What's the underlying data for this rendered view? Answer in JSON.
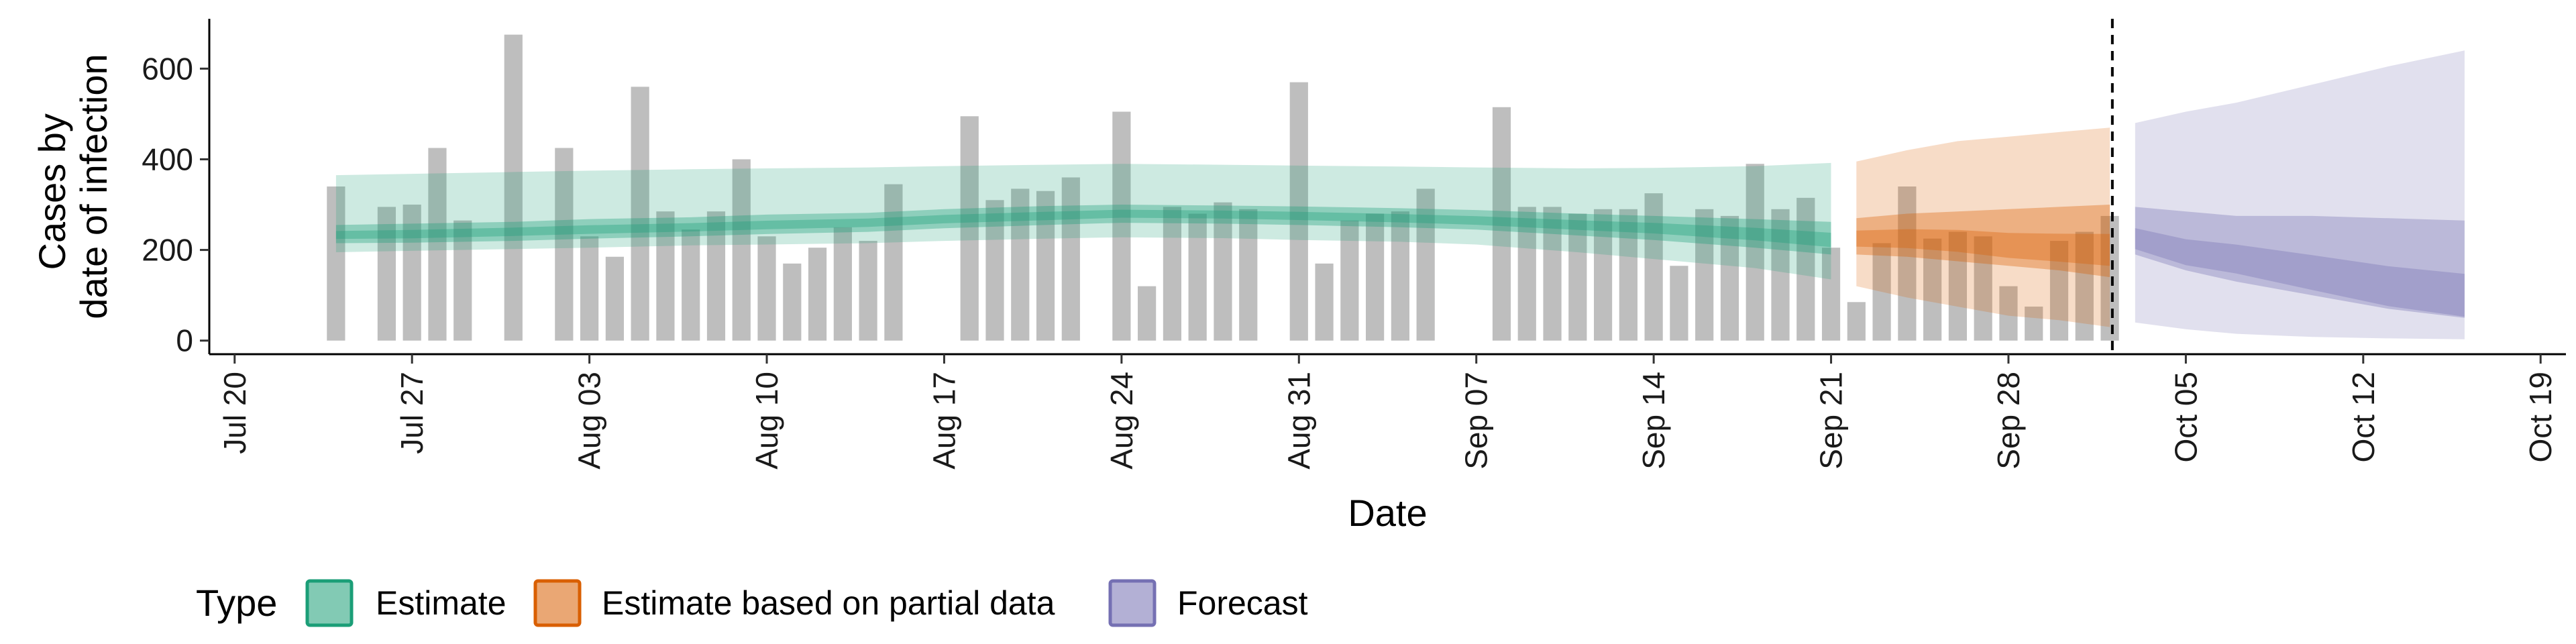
{
  "chart_data": {
    "type": "bar",
    "xlabel": "Date",
    "ylabel_lines": [
      "Cases by",
      "date of infection"
    ],
    "x_ticks": [
      "Jul 20",
      "Jul 27",
      "Aug 03",
      "Aug 10",
      "Aug 17",
      "Aug 24",
      "Aug 31",
      "Sep 07",
      "Sep 14",
      "Sep 21",
      "Sep 28",
      "Oct 05",
      "Oct 12",
      "Oct 19"
    ],
    "y_ticks": [
      0,
      200,
      400,
      600
    ],
    "ylim": [
      -30,
      710
    ],
    "xlim": [
      "2020-07-19",
      "2020-10-20"
    ],
    "grid": false,
    "forecast_date": "2020-10-02",
    "reported_cases": {
      "dates": [
        "2020-07-24",
        "2020-07-25",
        "2020-07-26",
        "2020-07-27",
        "2020-07-28",
        "2020-07-29",
        "2020-07-30",
        "2020-07-31",
        "2020-08-01",
        "2020-08-02",
        "2020-08-03",
        "2020-08-04",
        "2020-08-05",
        "2020-08-06",
        "2020-08-07",
        "2020-08-08",
        "2020-08-09",
        "2020-08-10",
        "2020-08-11",
        "2020-08-12",
        "2020-08-13",
        "2020-08-14",
        "2020-08-15",
        "2020-08-16",
        "2020-08-17",
        "2020-08-18",
        "2020-08-19",
        "2020-08-20",
        "2020-08-21",
        "2020-08-22",
        "2020-08-23",
        "2020-08-24",
        "2020-08-25",
        "2020-08-26",
        "2020-08-27",
        "2020-08-28",
        "2020-08-29",
        "2020-08-30",
        "2020-08-31",
        "2020-09-01",
        "2020-09-02",
        "2020-09-03",
        "2020-09-04",
        "2020-09-05",
        "2020-09-06",
        "2020-09-07",
        "2020-09-08",
        "2020-09-09",
        "2020-09-10",
        "2020-09-11",
        "2020-09-12",
        "2020-09-13",
        "2020-09-14",
        "2020-09-15",
        "2020-09-16",
        "2020-09-17",
        "2020-09-18",
        "2020-09-19",
        "2020-09-20",
        "2020-09-21",
        "2020-09-22",
        "2020-09-23",
        "2020-09-24",
        "2020-09-25",
        "2020-09-26",
        "2020-09-27",
        "2020-09-28",
        "2020-09-29",
        "2020-09-30",
        "2020-10-01",
        "2020-10-02"
      ],
      "values": [
        340,
        0,
        295,
        300,
        425,
        265,
        0,
        675,
        0,
        425,
        230,
        185,
        560,
        285,
        245,
        285,
        400,
        230,
        170,
        205,
        250,
        220,
        345,
        0,
        0,
        495,
        310,
        335,
        330,
        360,
        0,
        505,
        120,
        295,
        280,
        305,
        290,
        0,
        570,
        170,
        265,
        280,
        285,
        335,
        0,
        0,
        515,
        295,
        295,
        280,
        290,
        290,
        325,
        165,
        290,
        275,
        390,
        290,
        315,
        205,
        85,
        215,
        340,
        225,
        240,
        230,
        120,
        75,
        220,
        240,
        275
      ],
      "color": "#bebebe"
    },
    "series": [
      {
        "name": "Estimate",
        "color": "#1b9e77",
        "x": [
          "2020-07-24",
          "2020-07-27",
          "2020-07-31",
          "2020-08-03",
          "2020-08-07",
          "2020-08-10",
          "2020-08-14",
          "2020-08-17",
          "2020-08-21",
          "2020-08-24",
          "2020-08-28",
          "2020-08-31",
          "2020-09-04",
          "2020-09-07",
          "2020-09-11",
          "2020-09-14",
          "2020-09-18",
          "2020-09-21"
        ],
        "median": [
          233,
          235,
          240,
          245,
          250,
          255,
          260,
          268,
          275,
          280,
          278,
          275,
          270,
          265,
          255,
          248,
          235,
          222
        ],
        "inner_low": [
          215,
          216,
          220,
          225,
          230,
          235,
          240,
          248,
          255,
          260,
          258,
          255,
          250,
          245,
          232,
          222,
          205,
          190
        ],
        "inner_high": [
          255,
          258,
          262,
          268,
          272,
          278,
          282,
          290,
          297,
          300,
          298,
          296,
          292,
          288,
          280,
          275,
          268,
          262
        ],
        "outer_low": [
          195,
          198,
          202,
          205,
          210,
          212,
          215,
          220,
          225,
          228,
          226,
          222,
          218,
          212,
          195,
          180,
          160,
          135
        ],
        "outer_high": [
          365,
          368,
          372,
          375,
          378,
          380,
          382,
          385,
          388,
          390,
          388,
          386,
          384,
          382,
          380,
          381,
          385,
          392
        ]
      },
      {
        "name": "Estimate based on partial data",
        "color": "#d95f02",
        "x": [
          "2020-09-22",
          "2020-09-24",
          "2020-09-26",
          "2020-09-28",
          "2020-09-30",
          "2020-10-02"
        ],
        "median": [
          225,
          225,
          220,
          210,
          205,
          200
        ],
        "inner_low": [
          190,
          185,
          175,
          165,
          155,
          140
        ],
        "inner_high": [
          270,
          280,
          285,
          290,
          295,
          300
        ],
        "outer_low": [
          120,
          95,
          75,
          55,
          45,
          30
        ],
        "outer_high": [
          395,
          420,
          440,
          450,
          460,
          470
        ]
      },
      {
        "name": "Forecast",
        "color": "#7570b3",
        "x": [
          "2020-10-03",
          "2020-10-05",
          "2020-10-07",
          "2020-10-10",
          "2020-10-13",
          "2020-10-16"
        ],
        "median": [
          225,
          195,
          180,
          150,
          120,
          100
        ],
        "inner_low": [
          190,
          155,
          130,
          100,
          70,
          50
        ],
        "inner_high": [
          295,
          285,
          275,
          275,
          270,
          265
        ],
        "outer_low": [
          40,
          25,
          15,
          8,
          5,
          3
        ],
        "outer_high": [
          480,
          505,
          525,
          565,
          605,
          640
        ]
      }
    ],
    "legend": {
      "title": "Type",
      "position": "bottom",
      "entries": [
        "Estimate",
        "Estimate based on partial data",
        "Forecast"
      ]
    }
  }
}
